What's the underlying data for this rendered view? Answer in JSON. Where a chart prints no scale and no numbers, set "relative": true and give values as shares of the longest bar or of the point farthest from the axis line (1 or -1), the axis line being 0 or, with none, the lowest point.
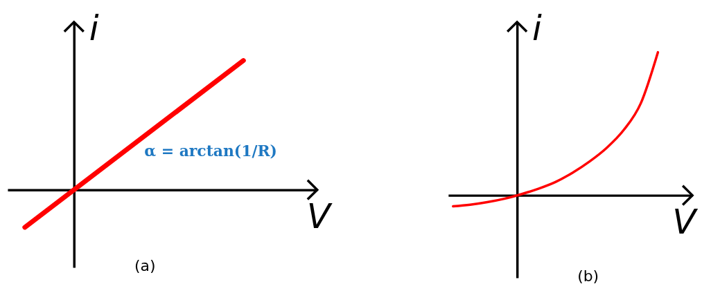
{
  "chart_data": [
    {
      "type": "line",
      "title": "(a)",
      "xlabel": "V",
      "ylabel": "i",
      "relative": true,
      "annotations": [
        "α = arctan(1/R)"
      ],
      "categories": [
        null,
        null
      ],
      "series": [
        {
          "color": "#ff0000",
          "values": [
            -0.29,
            1
          ]
        }
      ]
    },
    {
      "type": "line",
      "title": "(b)",
      "xlabel": "V",
      "ylabel": "i",
      "relative": true,
      "categories": [
        null,
        null,
        null,
        null,
        null,
        null,
        null,
        null,
        null,
        null,
        null,
        null,
        null
      ],
      "series": [
        {
          "color": "#ff0000",
          "values": [
            -0.077,
            -0.066,
            -0.048,
            -0.024,
            0.008,
            0.046,
            0.093,
            0.158,
            0.237,
            0.332,
            0.457,
            0.644,
            1
          ]
        }
      ]
    }
  ]
}
